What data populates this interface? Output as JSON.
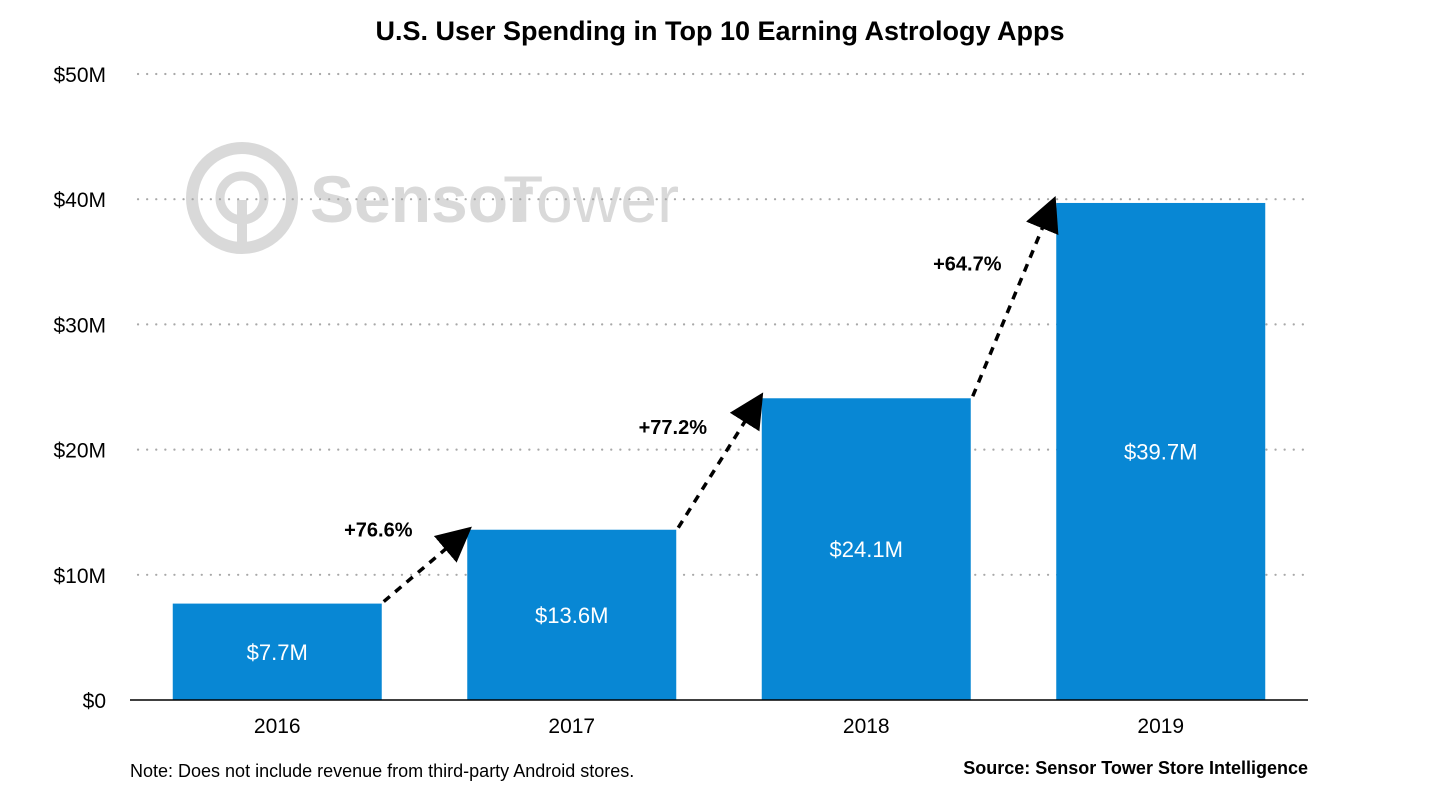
{
  "chart_data": {
    "type": "bar",
    "title": "U.S. User Spending in Top 10 Earning Astrology Apps",
    "categories": [
      "2016",
      "2017",
      "2018",
      "2019"
    ],
    "values": [
      7.7,
      13.6,
      24.1,
      39.7
    ],
    "value_labels": [
      "$7.7M",
      "$13.6M",
      "$24.1M",
      "$39.7M"
    ],
    "growth_labels": [
      "+76.6%",
      "+77.2%",
      "+64.7%"
    ],
    "ylim": [
      0,
      50
    ],
    "yticks": [
      0,
      10,
      20,
      30,
      40,
      50
    ],
    "ytick_labels": [
      "$0",
      "$10M",
      "$20M",
      "$30M",
      "$40M",
      "$50M"
    ],
    "grid": true,
    "bar_color": "#0887d4",
    "note": "Note: Does not include revenue from third-party Android stores.",
    "source": "Source: Sensor Tower Store Intelligence",
    "watermark": {
      "part1": "Sensor",
      "part2": "Tower",
      "icon": "sensor-tower-logo-icon"
    }
  }
}
